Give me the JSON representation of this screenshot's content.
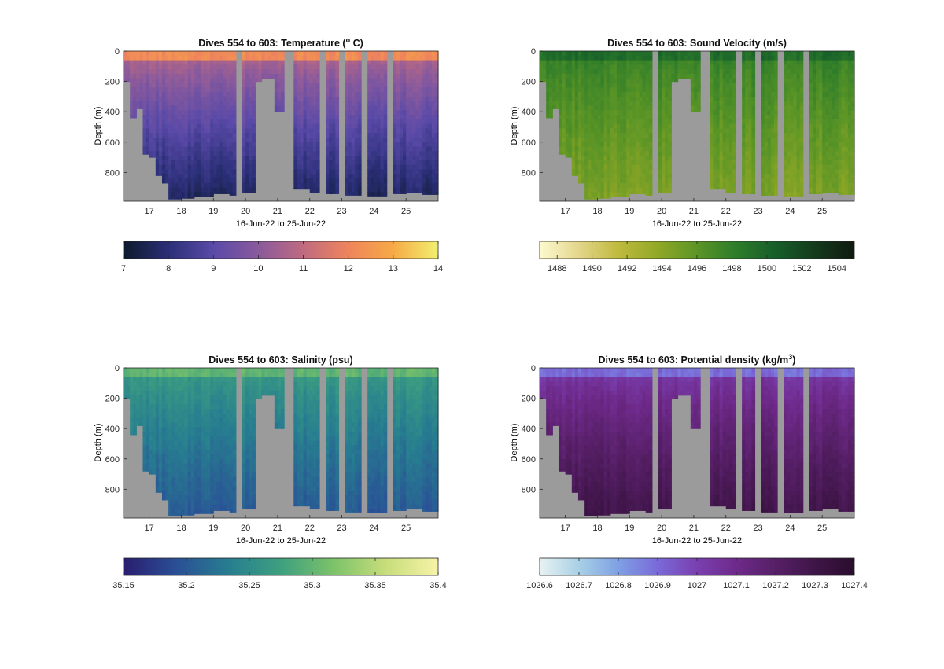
{
  "figure": {
    "date_label": "16-Jun-22 to 25-Jun-22",
    "depth_label": "Depth (m)"
  },
  "chart_data": [
    {
      "type": "heatmap",
      "title": "Dives 554 to 603: Temperature (",
      "title_super": "o",
      "title_end": " C)",
      "variable": "temperature",
      "xlabel": "16-Jun-22 to 25-Jun-22",
      "ylabel": "Depth (m)",
      "xlim": [
        16.2,
        26.0
      ],
      "ylim": [
        0,
        990
      ],
      "x_ticks": [
        17,
        18,
        19,
        20,
        21,
        22,
        23,
        24,
        25
      ],
      "y_ticks": [
        0,
        200,
        400,
        600,
        800
      ],
      "y_reversed": true,
      "colorbar": {
        "range": [
          7,
          14
        ],
        "ticks": [
          "7",
          "8",
          "9",
          "10",
          "11",
          "12",
          "13",
          "14"
        ],
        "colors": [
          "#0d1a2b",
          "#2b2f78",
          "#5a4aa8",
          "#8a5a9c",
          "#bf6a80",
          "#ef845c",
          "#f6aa46",
          "#f0f070"
        ]
      },
      "profile": {
        "surface_value": 12.2,
        "mixed_layer_depth_m": 70,
        "deep_value": 7.6
      }
    },
    {
      "type": "heatmap",
      "title": "Dives 554 to 603: Sound Velocity (m/s)",
      "variable": "sound_velocity",
      "xlabel": "16-Jun-22 to 25-Jun-22",
      "ylabel": "Depth (m)",
      "xlim": [
        16.2,
        26.0
      ],
      "ylim": [
        0,
        990
      ],
      "x_ticks": [
        17,
        18,
        19,
        20,
        21,
        22,
        23,
        24,
        25
      ],
      "y_ticks": [
        0,
        200,
        400,
        600,
        800
      ],
      "y_reversed": true,
      "colorbar": {
        "range": [
          1487,
          1505
        ],
        "ticks": [
          "1488",
          "1490",
          "1492",
          "1494",
          "1496",
          "1498",
          "1500",
          "1502",
          "1504"
        ],
        "colors": [
          "#fdfad0",
          "#e3d58a",
          "#bfba3e",
          "#91a826",
          "#5b9526",
          "#2d7c2a",
          "#165e2a",
          "#143b1c",
          "#0f1a10"
        ]
      },
      "profile": {
        "surface_value": 1499.5,
        "mixed_layer_depth_m": 70,
        "deep_value": 1494.5
      }
    },
    {
      "type": "heatmap",
      "title": "Dives 554 to 603: Salinity (psu)",
      "variable": "salinity",
      "xlabel": "16-Jun-22 to 25-Jun-22",
      "ylabel": "Depth (m)",
      "xlim": [
        16.2,
        26.0
      ],
      "ylim": [
        0,
        990
      ],
      "x_ticks": [
        17,
        18,
        19,
        20,
        21,
        22,
        23,
        24,
        25
      ],
      "y_ticks": [
        0,
        200,
        400,
        600,
        800
      ],
      "y_reversed": true,
      "colorbar": {
        "range": [
          35.15,
          35.4
        ],
        "ticks": [
          "35.15",
          "35.2",
          "35.25",
          "35.3",
          "35.35",
          "35.4"
        ],
        "colors": [
          "#2a1d6e",
          "#2a4f96",
          "#277d90",
          "#3da07f",
          "#7cc26a",
          "#c7dd7a",
          "#f7f3a8"
        ]
      },
      "profile": {
        "surface_value": 35.3,
        "mixed_layer_depth_m": 70,
        "deep_value": 35.2
      }
    },
    {
      "type": "heatmap",
      "title": "Dives 554 to 603: Potential density (kg/m",
      "title_super": "3",
      "title_end": ")",
      "variable": "potential_density",
      "xlabel": "16-Jun-22 to 25-Jun-22",
      "ylabel": "Depth (m)",
      "xlim": [
        16.2,
        26.0
      ],
      "ylim": [
        0,
        990
      ],
      "x_ticks": [
        17,
        18,
        19,
        20,
        21,
        22,
        23,
        24,
        25
      ],
      "y_ticks": [
        0,
        200,
        400,
        600,
        800
      ],
      "y_reversed": true,
      "colorbar": {
        "range": [
          1026.6,
          1027.4
        ],
        "ticks": [
          "1026.6",
          "1026.7",
          "1026.8",
          "1026.9",
          "1027",
          "1027.1",
          "1027.2",
          "1027.3",
          "1027.4"
        ],
        "colors": [
          "#e8f2f2",
          "#a8d0e6",
          "#7ea0e4",
          "#7a6ad8",
          "#7a3fb0",
          "#6e2a8a",
          "#561f66",
          "#3f1548",
          "#2a0d2c"
        ]
      },
      "profile": {
        "surface_value": 1026.9,
        "mixed_layer_depth_m": 70,
        "deep_value": 1027.3
      }
    }
  ],
  "data_gaps": {
    "no_data_color": "#9b9b9b",
    "missing_time_ranges": [
      [
        19.75,
        19.92
      ],
      [
        21.25,
        21.5
      ],
      [
        22.3,
        22.48
      ],
      [
        22.88,
        23.08
      ],
      [
        23.65,
        23.85
      ],
      [
        24.45,
        24.62
      ]
    ],
    "seafloor_depth_m": [
      [
        16.2,
        200
      ],
      [
        16.42,
        440
      ],
      [
        16.58,
        380
      ],
      [
        16.78,
        680
      ],
      [
        17.0,
        700
      ],
      [
        17.18,
        820
      ],
      [
        17.38,
        870
      ],
      [
        17.58,
        975
      ],
      [
        18.0,
        970
      ],
      [
        18.4,
        960
      ],
      [
        19.0,
        940
      ],
      [
        19.5,
        950
      ],
      [
        19.92,
        930
      ],
      [
        20.22,
        930
      ],
      [
        20.32,
        200
      ],
      [
        20.55,
        180
      ],
      [
        20.85,
        180
      ],
      [
        20.9,
        400
      ],
      [
        21.25,
        390
      ],
      [
        21.5,
        910
      ],
      [
        22.0,
        930
      ],
      [
        22.48,
        940
      ],
      [
        22.88,
        950
      ],
      [
        23.08,
        950
      ],
      [
        23.65,
        955
      ],
      [
        23.85,
        955
      ],
      [
        24.45,
        960
      ],
      [
        24.62,
        940
      ],
      [
        25.0,
        930
      ],
      [
        25.5,
        945
      ],
      [
        26.0,
        935
      ]
    ]
  }
}
